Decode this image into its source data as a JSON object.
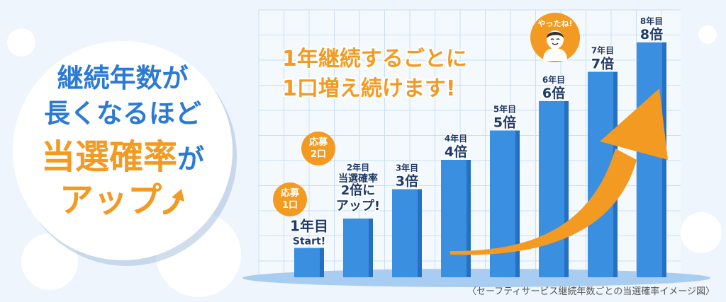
{
  "headline": {
    "line1": "継続年数が",
    "line2": "長くなるほど",
    "line3": "当選確率",
    "line3_suffix": "が",
    "line4": "アップ"
  },
  "callout": {
    "line1": "1年継続するごとに",
    "line2": "1口増え続けます!"
  },
  "badges": {
    "year1": {
      "line1": "応募",
      "line2": "1口"
    },
    "year2": {
      "line1": "応募",
      "line2": "2口"
    }
  },
  "character": {
    "exclamation": "やったね!",
    "icon": "happy-person-icon"
  },
  "caption": "〈セーフティサービス継続年数ごとの当選確率イメージ図〉",
  "colors": {
    "bar": "#3b8fe0",
    "bar_side": "#2670c4",
    "accent": "#f39a22",
    "headline_blue": "#2a7ad6"
  },
  "chart_data": {
    "type": "bar",
    "categories": [
      "1年目",
      "2年目",
      "3年目",
      "4年目",
      "5年目",
      "6年目",
      "7年目",
      "8年目"
    ],
    "values": [
      1,
      2,
      3,
      4,
      5,
      6,
      7,
      8
    ],
    "value_labels": [
      "Start!",
      "2倍に",
      "3倍",
      "4倍",
      "5倍",
      "6倍",
      "7倍",
      "8倍"
    ],
    "year2_note": [
      "当選確率",
      "アップ!"
    ],
    "ylim": [
      0,
      8
    ],
    "grid": true,
    "title": "",
    "xlabel": "",
    "ylabel": ""
  }
}
